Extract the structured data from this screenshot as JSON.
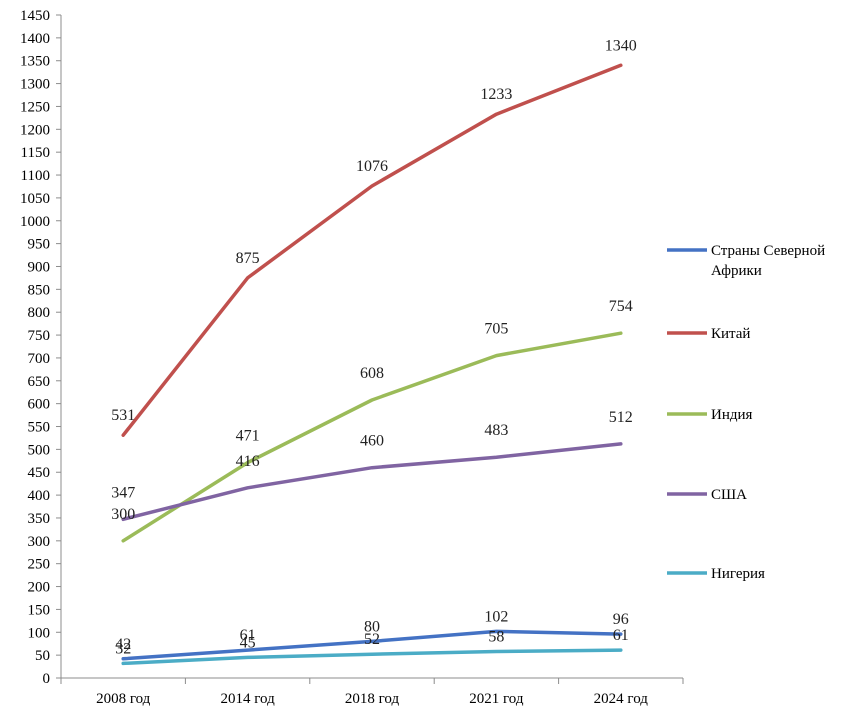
{
  "chart_data": {
    "type": "line",
    "categories": [
      "2008 год",
      "2014 год",
      "2018 год",
      "2021 год",
      "2024 год"
    ],
    "ylim": [
      0,
      1450
    ],
    "ytick_step": 50,
    "grid": false,
    "legend_position": "right",
    "series": [
      {
        "name": "Страны Северной Африки",
        "name_lines": [
          "Страны Северной",
          "Африки"
        ],
        "color": "#4472c4",
        "values": [
          42,
          61,
          80,
          102,
          96
        ]
      },
      {
        "name": "Китай",
        "name_lines": [
          "Китай"
        ],
        "color": "#c0504d",
        "values": [
          531,
          875,
          1076,
          1233,
          1340
        ]
      },
      {
        "name": "Индия",
        "name_lines": [
          "Индия"
        ],
        "color": "#9bbb59",
        "values": [
          300,
          471,
          608,
          705,
          754
        ]
      },
      {
        "name": "США",
        "name_lines": [
          "США"
        ],
        "color": "#8064a2",
        "values": [
          347,
          416,
          460,
          483,
          512
        ]
      },
      {
        "name": "Нигерия",
        "name_lines": [
          "Нигерия"
        ],
        "color": "#4bacc6",
        "values": [
          32,
          45,
          52,
          58,
          61
        ]
      }
    ]
  }
}
